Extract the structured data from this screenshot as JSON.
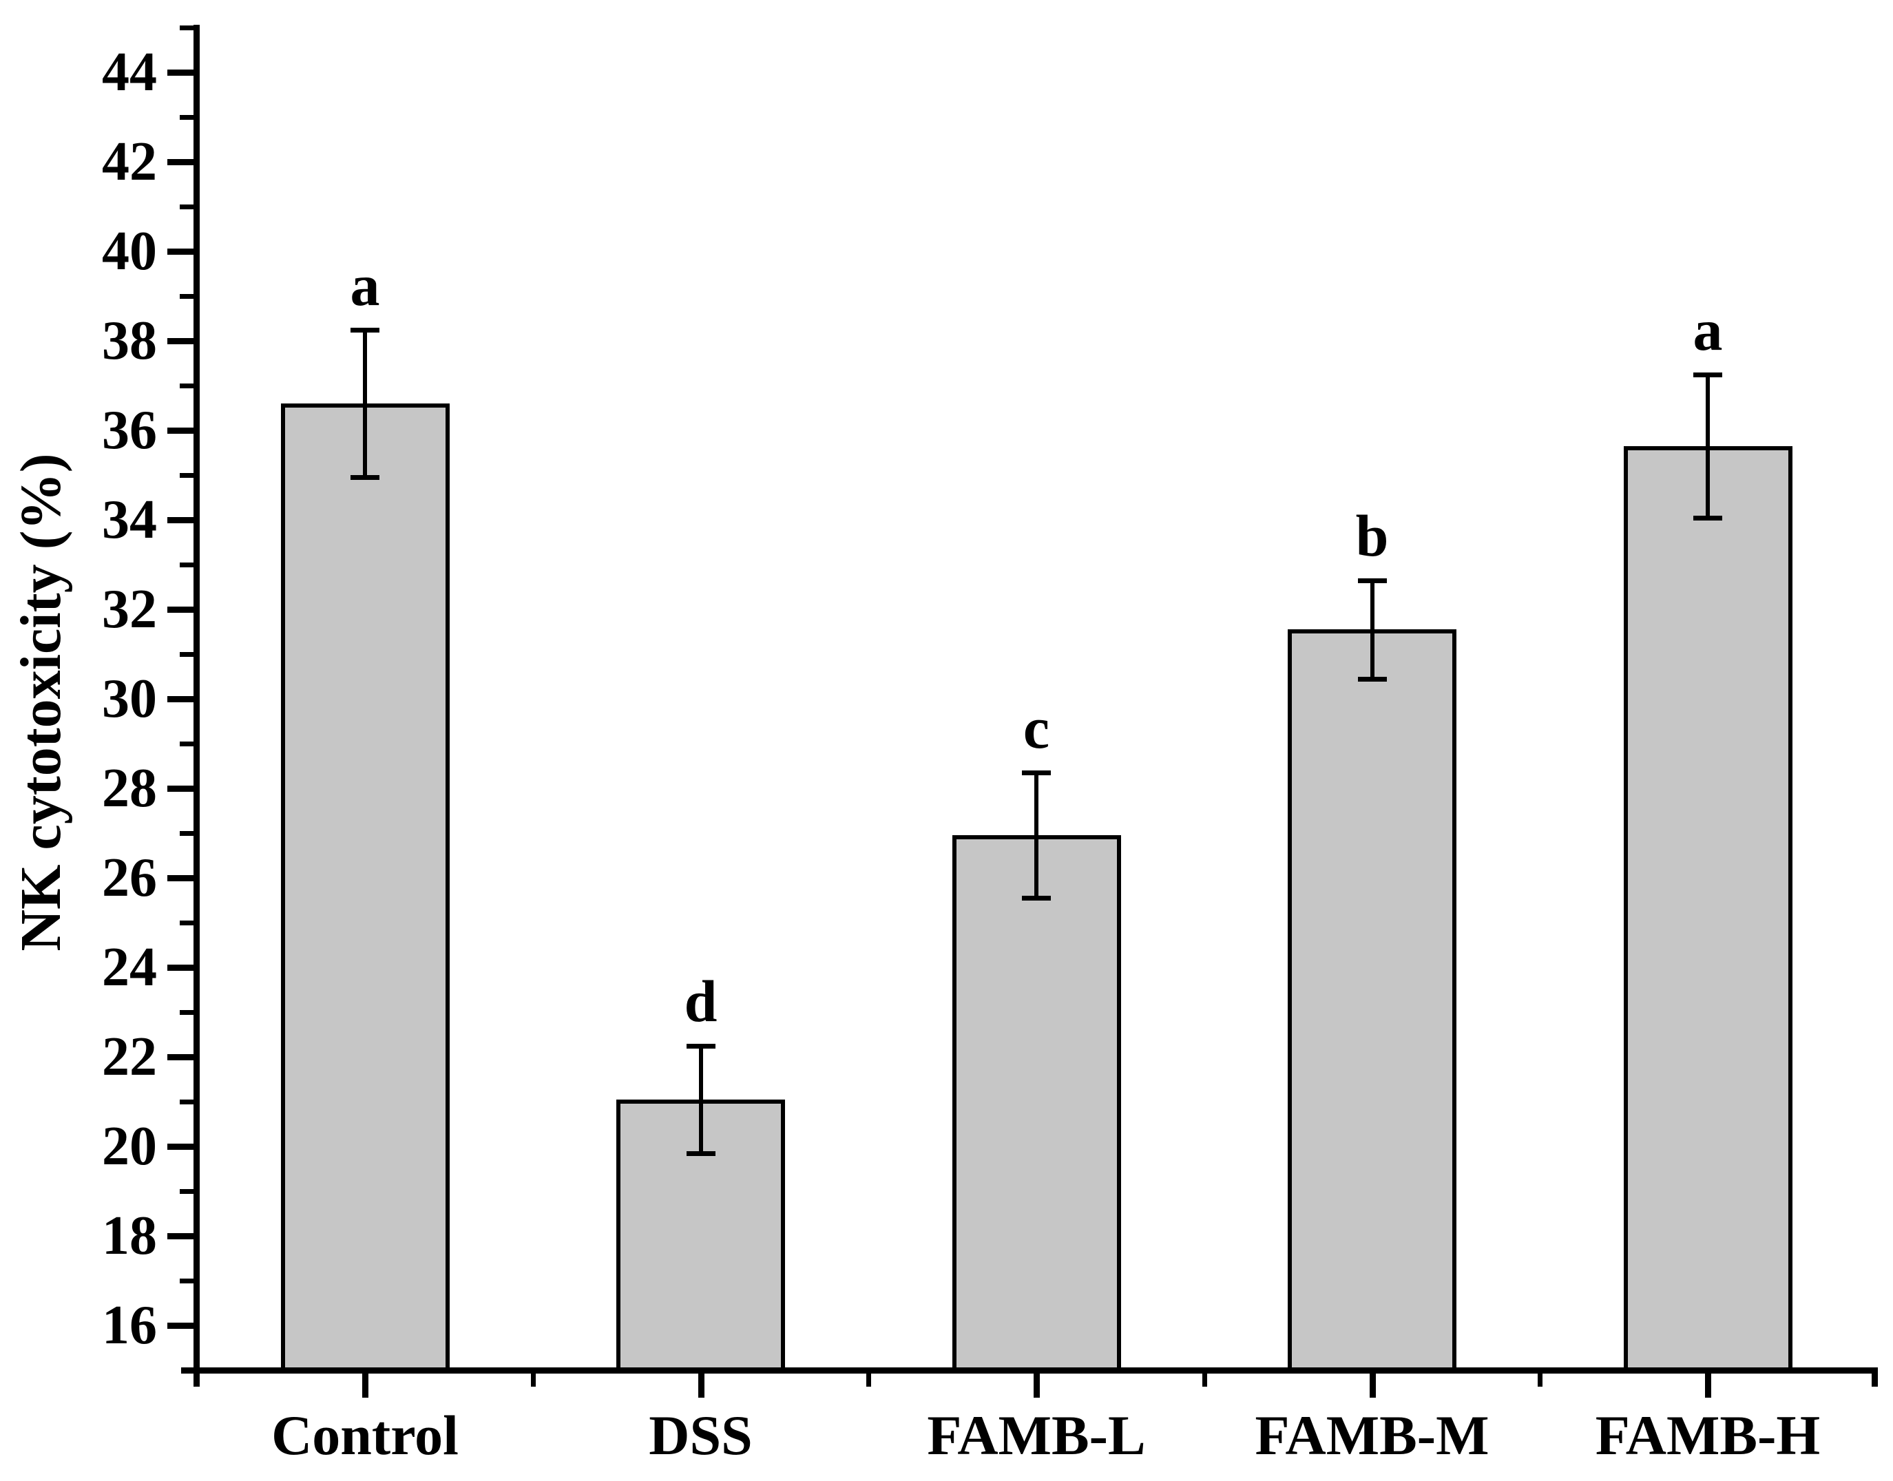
{
  "figure": {
    "background": "#ffffff",
    "axis_color": "#000000",
    "bar_fill": "#c6c6c6"
  },
  "chart_data": {
    "type": "bar",
    "title": "",
    "xlabel": "",
    "ylabel": "NK cytotoxicity (%)",
    "categories": [
      "Control",
      "DSS",
      "FAMB-L",
      "FAMB-M",
      "FAMB-H"
    ],
    "values": [
      36.6,
      21.05,
      26.95,
      31.55,
      35.65
    ],
    "errors": [
      1.65,
      1.2,
      1.4,
      1.1,
      1.6
    ],
    "sig_letters": [
      "a",
      "d",
      "c",
      "b",
      "a"
    ],
    "ylim": [
      15,
      45
    ],
    "yticks": [
      16,
      18,
      20,
      22,
      24,
      26,
      28,
      30,
      32,
      34,
      36,
      38,
      40,
      42,
      44
    ],
    "minor_ytick_step": 1,
    "grid": false,
    "legend": "none",
    "bar_color": "#c6c6c6",
    "error_color": "#000000",
    "series": [
      {
        "name": "NK cytotoxicity",
        "points": [
          {
            "category": "Control",
            "value": 36.6,
            "error": 1.65,
            "letter": "a"
          },
          {
            "category": "DSS",
            "value": 21.05,
            "error": 1.2,
            "letter": "d"
          },
          {
            "category": "FAMB-L",
            "value": 26.95,
            "error": 1.4,
            "letter": "c"
          },
          {
            "category": "FAMB-M",
            "value": 31.55,
            "error": 1.1,
            "letter": "b"
          },
          {
            "category": "FAMB-H",
            "value": 35.65,
            "error": 1.6,
            "letter": "a"
          }
        ]
      }
    ]
  }
}
